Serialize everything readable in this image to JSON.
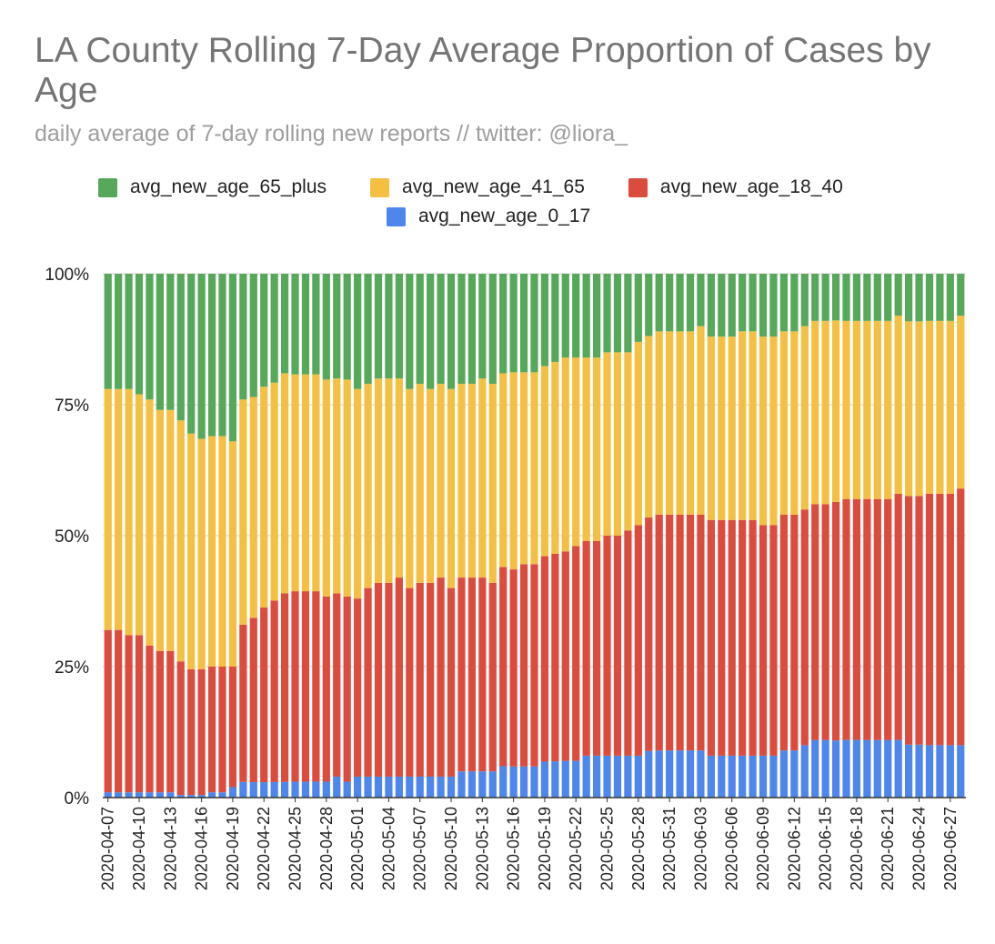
{
  "chart_data": {
    "type": "bar",
    "stacked": "percent",
    "title": "LA County Rolling 7-Day Average Proportion of Cases by Age",
    "subtitle": "daily average of 7-day rolling new reports // twitter: @liora_",
    "legend_position": "top",
    "grid": true,
    "ylim": [
      0,
      100
    ],
    "y_ticks": [
      "0%",
      "25%",
      "50%",
      "75%",
      "100%"
    ],
    "x_start": "2020-04-07",
    "x_labels": [
      "2020-04-07",
      "2020-04-10",
      "2020-04-13",
      "2020-04-16",
      "2020-04-19",
      "2020-04-22",
      "2020-04-25",
      "2020-04-28",
      "2020-05-01",
      "2020-05-04",
      "2020-05-07",
      "2020-05-10",
      "2020-05-13",
      "2020-05-16",
      "2020-05-19",
      "2020-05-22",
      "2020-05-25",
      "2020-05-28",
      "2020-05-31",
      "2020-06-03",
      "2020-06-06",
      "2020-06-09",
      "2020-06-12",
      "2020-06-15",
      "2020-06-18",
      "2020-06-21",
      "2020-06-24",
      "2020-06-27"
    ],
    "series": [
      {
        "name": "avg_new_age_0_17",
        "color": "#4f86ec",
        "values": [
          1,
          1,
          1,
          1,
          1,
          1,
          1,
          0.5,
          0.5,
          0.5,
          1,
          1,
          2,
          3,
          3,
          3,
          3,
          3,
          3,
          3,
          3,
          3,
          4,
          3,
          4,
          4,
          4,
          4,
          4,
          4,
          4,
          4,
          4,
          4,
          5,
          5,
          5,
          5,
          6,
          6,
          6,
          6,
          7,
          7,
          7,
          7,
          8,
          8,
          8,
          8,
          8,
          8,
          9,
          9,
          9,
          9,
          9,
          9,
          8,
          8,
          8,
          8,
          8,
          8,
          8,
          9,
          9,
          10,
          11,
          11,
          11,
          11,
          11,
          11,
          11,
          11,
          11,
          10,
          10,
          10,
          10,
          10,
          10
        ]
      },
      {
        "name": "avg_new_age_18_40",
        "color": "#db4c3f",
        "values": [
          31,
          31,
          30,
          30,
          28,
          27,
          27,
          25.5,
          24,
          24,
          24,
          24,
          23,
          30,
          32,
          34,
          35,
          36,
          36,
          36,
          36,
          35,
          35,
          35,
          34,
          36,
          37,
          37,
          38,
          36,
          37,
          37,
          38,
          36,
          37,
          37,
          37,
          36,
          38,
          38,
          39,
          39,
          40,
          40,
          40,
          41,
          41,
          41,
          42,
          42,
          43,
          44,
          45,
          45,
          45,
          45,
          45,
          45,
          45,
          45,
          45,
          45,
          45,
          44,
          44,
          45,
          45,
          45,
          45,
          45,
          46,
          46,
          46,
          46,
          46,
          46,
          47,
          47,
          47,
          48,
          48,
          48,
          49
        ]
      },
      {
        "name": "avg_new_age_41_65",
        "color": "#f4c043",
        "values": [
          46,
          46,
          47,
          46,
          47,
          46,
          46,
          46,
          45,
          44,
          44,
          44,
          43,
          43,
          43,
          43,
          42,
          42,
          41,
          41,
          41,
          41,
          41,
          41,
          40,
          39,
          39,
          39,
          38,
          38,
          38,
          37,
          37,
          38,
          37,
          37,
          38,
          38,
          37,
          38,
          37,
          37,
          37,
          37,
          37,
          36,
          35,
          35,
          35,
          35,
          34,
          35,
          35,
          35,
          35,
          35,
          35,
          36,
          35,
          35,
          35,
          36,
          36,
          36,
          36,
          35,
          35,
          35,
          35,
          35,
          35,
          34,
          34,
          34,
          34,
          34,
          34,
          33,
          33,
          33,
          33,
          33,
          33
        ]
      },
      {
        "name": "avg_new_age_65_plus",
        "color": "#57a85a",
        "values": [
          22,
          22,
          22,
          23,
          24,
          26,
          26,
          28,
          30.5,
          31.5,
          31,
          31,
          32,
          24,
          24,
          22,
          21,
          19,
          19,
          19,
          19,
          20,
          20,
          20,
          22,
          21,
          20,
          20,
          20,
          22,
          21,
          22,
          21,
          22,
          21,
          21,
          20,
          21,
          19,
          19,
          19,
          19,
          18,
          17,
          16,
          16,
          16,
          16,
          15,
          15,
          15,
          13,
          12,
          11,
          11,
          11,
          11,
          10,
          12,
          12,
          12,
          11,
          11,
          12,
          12,
          11,
          11,
          10,
          9,
          9,
          9,
          9,
          9,
          9,
          9,
          9,
          8,
          9,
          9,
          9,
          9,
          9,
          8
        ]
      }
    ]
  }
}
